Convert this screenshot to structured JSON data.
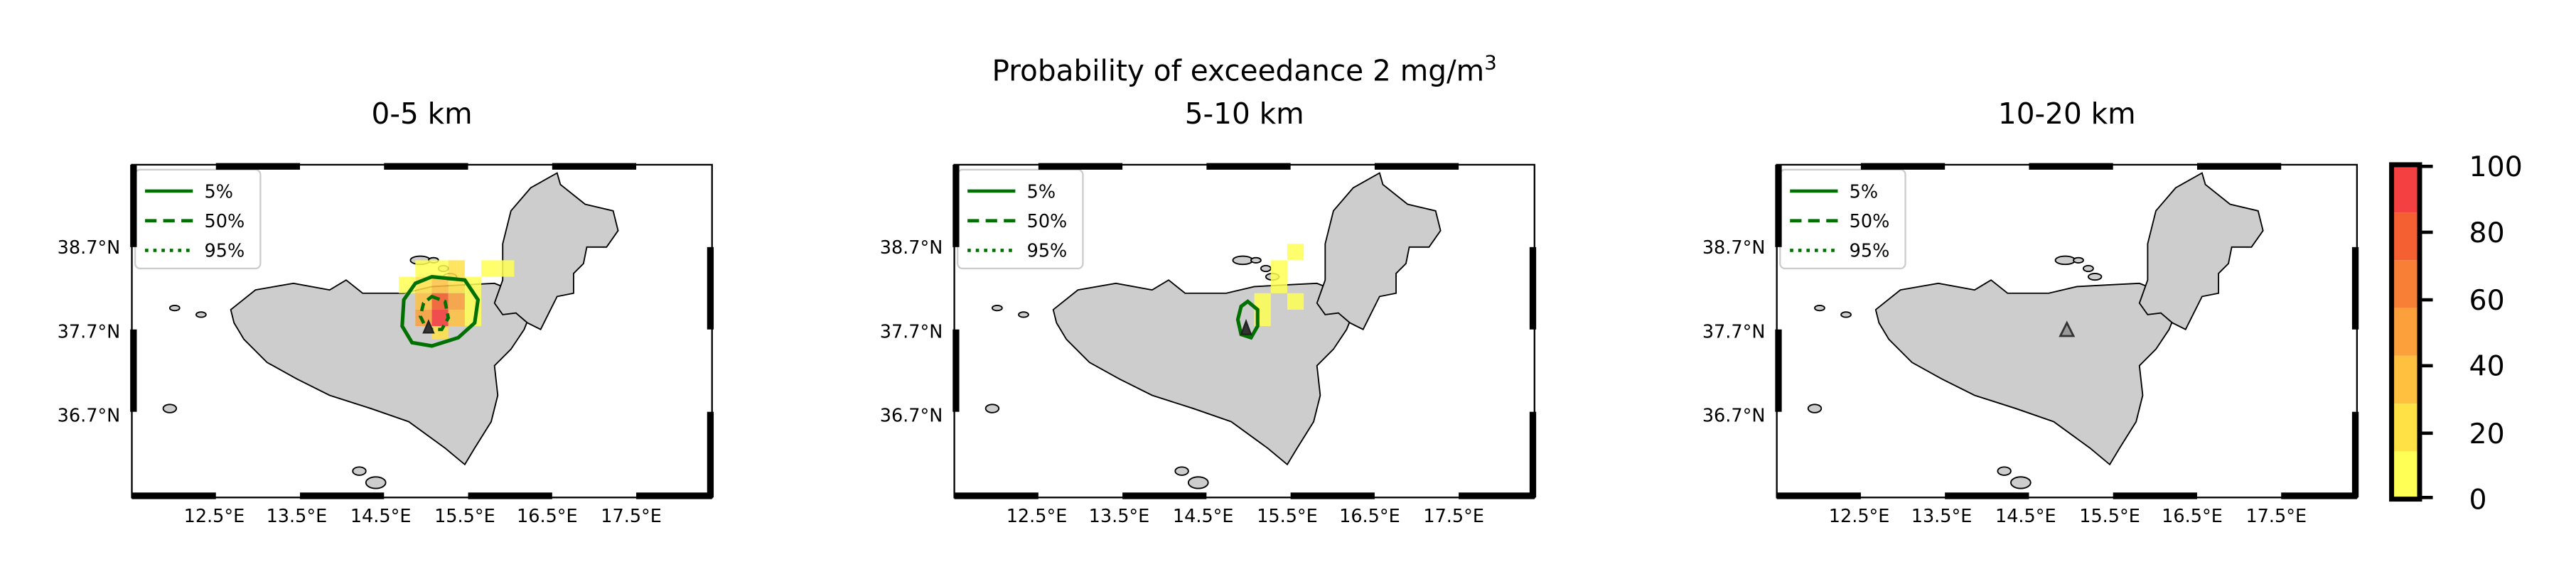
{
  "figure": {
    "title_main": "Probability of exceedance 2 mg/m",
    "title_sup": "3"
  },
  "legend": {
    "items": [
      "5%",
      "50%",
      "95%"
    ]
  },
  "axes_labels": {
    "lat_ticks": [
      "38.7°N",
      "37.7°N",
      "36.7°N"
    ],
    "lon_ticks": [
      "12.5°E",
      "13.5°E",
      "14.5°E",
      "15.5°E",
      "16.5°E",
      "17.5°E"
    ]
  },
  "colorbar": {
    "ticks": [
      "100",
      "80",
      "60",
      "40",
      "20",
      "0"
    ],
    "colors": [
      "#ffff55",
      "#ffe045",
      "#ffc040",
      "#fba03a",
      "#f88036",
      "#f56033",
      "#f44040"
    ]
  },
  "colors": {
    "land": "#cdcdcd",
    "contour": "#007000",
    "frame": "#000000"
  },
  "panels": [
    {
      "title": "0-5 km"
    },
    {
      "title": "5-10 km"
    },
    {
      "title": "10-20 km"
    }
  ]
}
